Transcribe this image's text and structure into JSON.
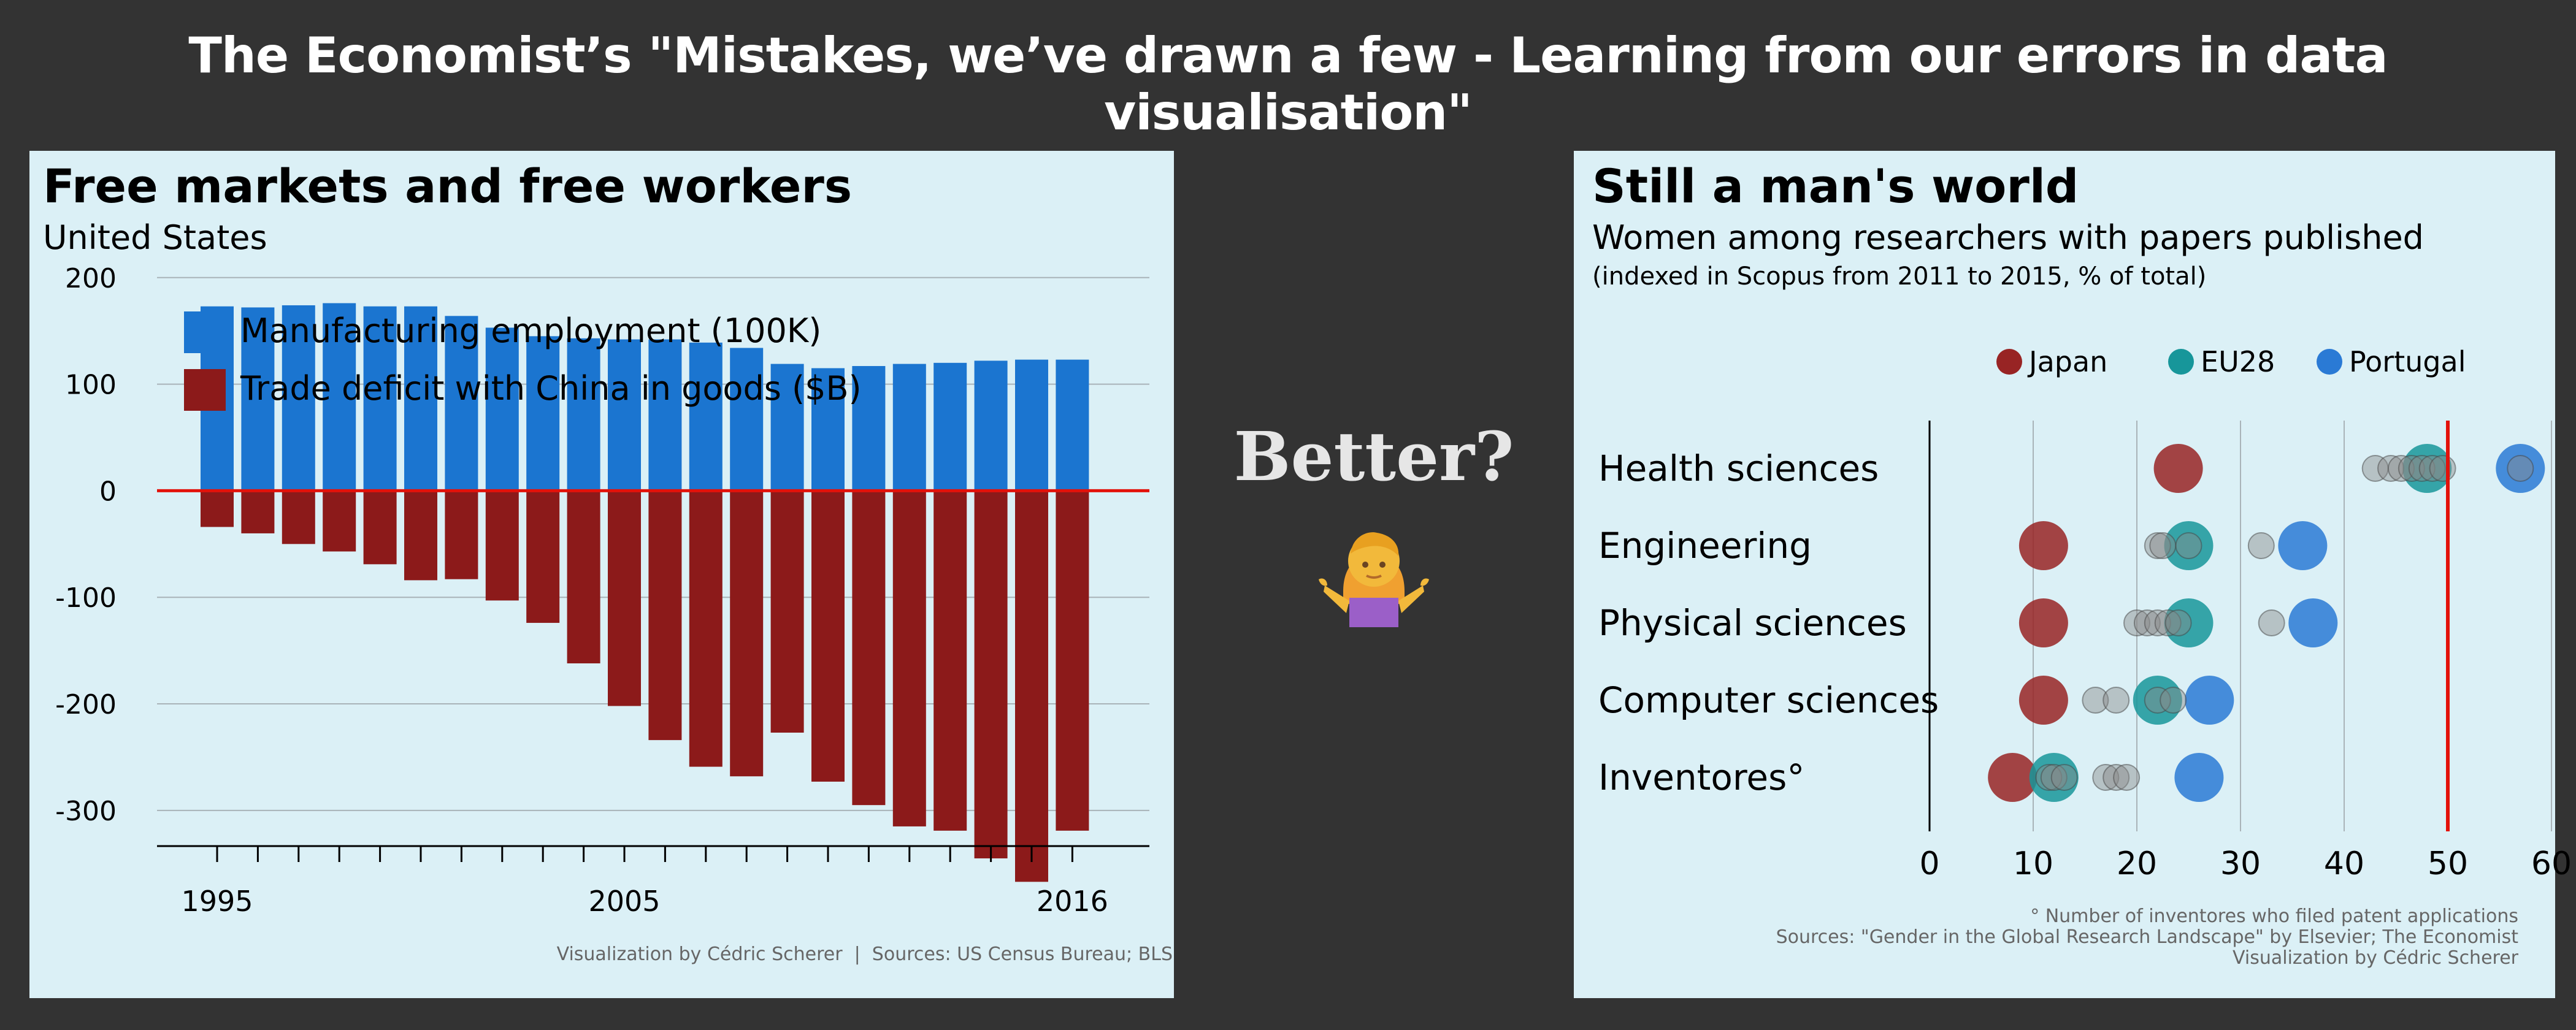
{
  "page_title": "The Economist’s \"Mistakes, we’ve drawn a few - Learning from our errors in data visualisation\"",
  "middle": {
    "text": "Better?",
    "emoji_icon": "woman-shrugging-icon"
  },
  "colors": {
    "background": "#333333",
    "panel": "#dbf0f6",
    "manufacturing": "#1b75d0",
    "deficit": "#8c1a1a",
    "zero_line": "#e3120b",
    "japan": "#982424",
    "eu28": "#17969a",
    "portugal": "#2a7ad5",
    "other_eu": "#8a8a8a",
    "reference_line": "#e3120b"
  },
  "chart_data": [
    {
      "type": "bar",
      "title": "Free markets and free workers",
      "subtitle": "United States",
      "legend": [
        "Manufacturing employment (100K)",
        "Trade deficit with China in goods ($B)"
      ],
      "legend_position": "top-left",
      "x": [
        1995,
        1996,
        1997,
        1998,
        1999,
        2000,
        2001,
        2002,
        2003,
        2004,
        2005,
        2006,
        2007,
        2008,
        2009,
        2010,
        2011,
        2012,
        2013,
        2014,
        2015,
        2016
      ],
      "x_tick_labels": [
        "1995",
        "2005",
        "2016"
      ],
      "series": [
        {
          "name": "Manufacturing employment (100K)",
          "values": [
            173,
            172,
            174,
            176,
            173,
            173,
            164,
            153,
            145,
            143,
            142,
            142,
            139,
            134,
            119,
            115,
            117,
            119,
            120,
            122,
            123,
            123
          ]
        },
        {
          "name": "Trade deficit with China in goods ($B)",
          "values": [
            -34,
            -40,
            -50,
            -57,
            -69,
            -84,
            -83,
            -103,
            -124,
            -162,
            -202,
            -234,
            -259,
            -268,
            -227,
            -273,
            -295,
            -315,
            -319,
            -345,
            -367,
            -319
          ]
        }
      ],
      "ylim": [
        -330,
        220
      ],
      "y_ticks": [
        200,
        100,
        0,
        -100,
        -200,
        -300
      ],
      "y_tick_labels": [
        "200",
        "100",
        "0",
        "-100",
        "-200",
        "-300"
      ],
      "grid": "horizontal",
      "caption": "Visualization by Cédric Scherer  |  Sources: US Census Bureau; BLS"
    },
    {
      "type": "scatter",
      "title": "Still a man's world",
      "subtitle": "Women among researchers with papers published",
      "subtitle2": "(indexed in Scopus from 2011 to 2015, % of total)",
      "legend": [
        "Japan",
        "EU28",
        "Portugal"
      ],
      "legend_position": "top-right",
      "categories": [
        "Health sciences",
        "Engineering",
        "Physical sciences",
        "Computer sciences",
        "Inventores°"
      ],
      "series": [
        {
          "name": "Japan",
          "values": [
            24,
            11,
            11,
            11,
            8
          ]
        },
        {
          "name": "EU28",
          "values": [
            48,
            25,
            25,
            22,
            12
          ]
        },
        {
          "name": "Portugal",
          "values": [
            57,
            36,
            37,
            27,
            26
          ]
        }
      ],
      "other_countries": [
        [
          43,
          44.5,
          45.5,
          46.5,
          47.5,
          48.5,
          49.5,
          57
        ],
        [
          22,
          22.5,
          25,
          32
        ],
        [
          20,
          21,
          22,
          23,
          24,
          33
        ],
        [
          16,
          18,
          22,
          23.5
        ],
        [
          11.5,
          12,
          13,
          17,
          18,
          19
        ]
      ],
      "xlim": [
        0,
        60
      ],
      "x_ticks": [
        0,
        10,
        20,
        30,
        40,
        50,
        60
      ],
      "x_tick_labels": [
        "0",
        "10",
        "20",
        "30",
        "40",
        "50",
        "60"
      ],
      "reference_line": 50,
      "grid": "vertical",
      "footnote": "° Number of inventores who filed patent applications",
      "sources": "Sources: \"Gender in the Global Research Landscape\" by Elsevier; The Economist",
      "credit": "Visualization by Cédric Scherer"
    }
  ]
}
